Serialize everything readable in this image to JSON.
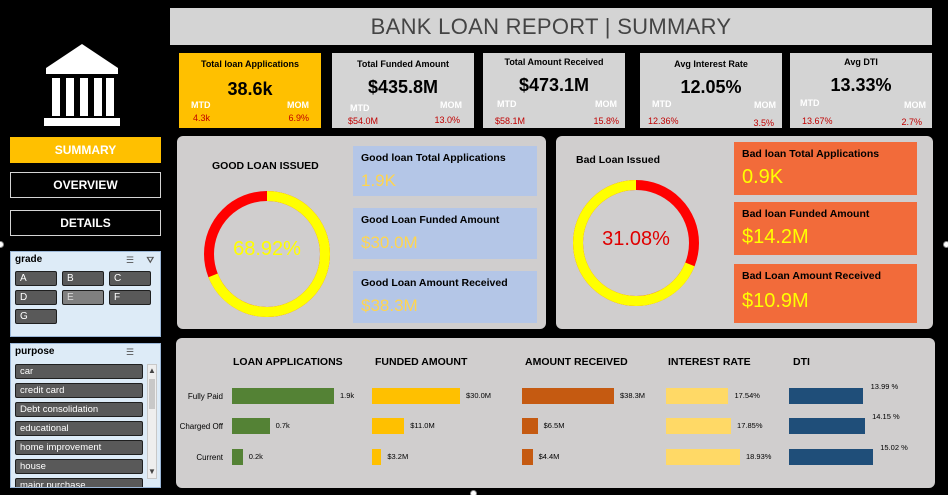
{
  "title": "BANK LOAN REPORT | SUMMARY",
  "nav": [
    {
      "label": "SUMMARY",
      "active": true
    },
    {
      "label": "OVERVIEW",
      "active": false
    },
    {
      "label": "DETAILS",
      "active": false
    }
  ],
  "kpis": [
    {
      "title": "Total loan Applications",
      "value": "38.6k",
      "mtd_label": "MTD",
      "mom_label": "MOM",
      "mtd": "4.3k",
      "mom": "6.9%"
    },
    {
      "title": "Total Funded Amount",
      "value": "$435.8M",
      "mtd_label": "MTD",
      "mom_label": "MOM",
      "mtd": "$54.0M",
      "mom": "13.0%"
    },
    {
      "title": "Total Amount Received",
      "value": "$473.1M",
      "mtd_label": "MTD",
      "mom_label": "MOM",
      "mtd": "$58.1M",
      "mom": "15.8%"
    },
    {
      "title": "Avg Interest Rate",
      "value": "12.05%",
      "mtd_label": "MTD",
      "mom_label": "MOM",
      "mtd": "12.36%",
      "mom": "3.5%"
    },
    {
      "title": "Avg DTI",
      "value": "13.33%",
      "mtd_label": "MTD",
      "mom_label": "MOM",
      "mtd": "13.67%",
      "mom": "2.7%"
    }
  ],
  "good_loan": {
    "title": "GOOD LOAN ISSUED",
    "percent": "68.92%",
    "fraction": 0.6892,
    "cards": [
      {
        "label": "Good loan Total Applications",
        "value": "1.9K"
      },
      {
        "label": "Good Loan Funded Amount",
        "value": "$30.0M"
      },
      {
        "label": "Good Loan Amount Received",
        "value": "$38.3M"
      }
    ]
  },
  "bad_loan": {
    "title": "Bad Loan Issued",
    "percent": "31.08%",
    "fraction": 0.3108,
    "cards": [
      {
        "label": "Bad loan Total Applications",
        "value": "0.9K"
      },
      {
        "label": "Bad loan Funded Amount",
        "value": "$14.2M"
      },
      {
        "label": "Bad Loan Amount Received",
        "value": "$10.9M"
      }
    ]
  },
  "grade_slicer": {
    "title": "grade",
    "options": [
      "A",
      "B",
      "C",
      "D",
      "E",
      "F",
      "G"
    ]
  },
  "purpose_slicer": {
    "title": "purpose",
    "options": [
      "car",
      "credit card",
      "Debt consolidation",
      "educational",
      "home improvement",
      "house",
      "major purchase"
    ]
  },
  "colors": {
    "yellow": "#ffc000",
    "good_ring": "#ffff00",
    "bad_ring": "#ff0000",
    "green_bar": "#548235",
    "yellow_bar": "#ffc000",
    "orange_bar": "#c55a11",
    "light_bar": "#ffd966",
    "navy_bar": "#1f4e79"
  },
  "chart_data": {
    "type": "bar",
    "categories": [
      "Fully Paid",
      "Charged Off",
      "Current"
    ],
    "series": [
      {
        "name": "LOAN APPLICATIONS",
        "values": [
          1.9,
          0.7,
          0.2
        ],
        "labels": [
          "1.9k",
          "0.7k",
          "0.2k"
        ]
      },
      {
        "name": "FUNDED AMOUNT",
        "values": [
          30.0,
          11.0,
          3.2
        ],
        "labels": [
          "$30.0M",
          "$11.0M",
          "$3.2M"
        ]
      },
      {
        "name": "AMOUNT RECEIVED",
        "values": [
          38.3,
          6.5,
          4.4
        ],
        "labels": [
          "$38.3M",
          "$6.5M",
          "$4.4M"
        ]
      },
      {
        "name": "INTEREST RATE",
        "values": [
          17.54,
          17.85,
          18.93
        ],
        "labels": [
          "17.54%",
          "17.85%",
          "18.93%"
        ]
      },
      {
        "name": "DTI",
        "values": [
          13.99,
          14.15,
          15.02
        ],
        "labels": [
          "13.99 %",
          "14.15 %",
          "15.02 %"
        ]
      }
    ]
  }
}
